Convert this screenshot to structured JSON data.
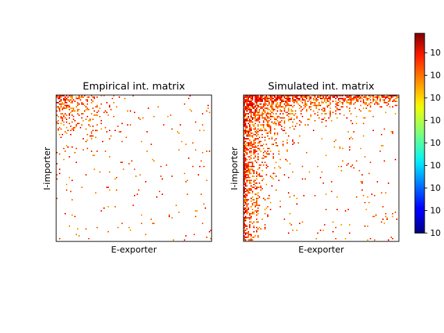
{
  "chart_data": [
    {
      "type": "heatmap",
      "title": "Empirical int. matrix",
      "xlabel": "E-exporter",
      "ylabel": "I-importer",
      "x_ticks": [],
      "y_ticks": [],
      "color_scale": "log",
      "colormap": "jet",
      "pattern": "dense near top-left corner (low E-exporter index, low I-importer index), sparse elsewhere",
      "density_estimate": {
        "corner_fill": 0.95,
        "decay_rate": 3.5,
        "background_fill": 0.015
      }
    },
    {
      "type": "heatmap",
      "title": "Simulated int. matrix",
      "xlabel": "E-exporter",
      "ylabel": "I-importer",
      "x_ticks": [],
      "y_ticks": [],
      "color_scale": "log",
      "colormap": "jet",
      "pattern": "dense along top row and left column, sparse interior",
      "density_estimate": {
        "corner_fill": 0.97,
        "decay_rate": 2.8,
        "background_fill": 0.02
      }
    }
  ],
  "colorbar": {
    "colormap": "jet",
    "scale": "log",
    "tick_labels": [
      "10",
      "10",
      "10",
      "10",
      "10",
      "10",
      "10",
      "10",
      "10"
    ]
  }
}
